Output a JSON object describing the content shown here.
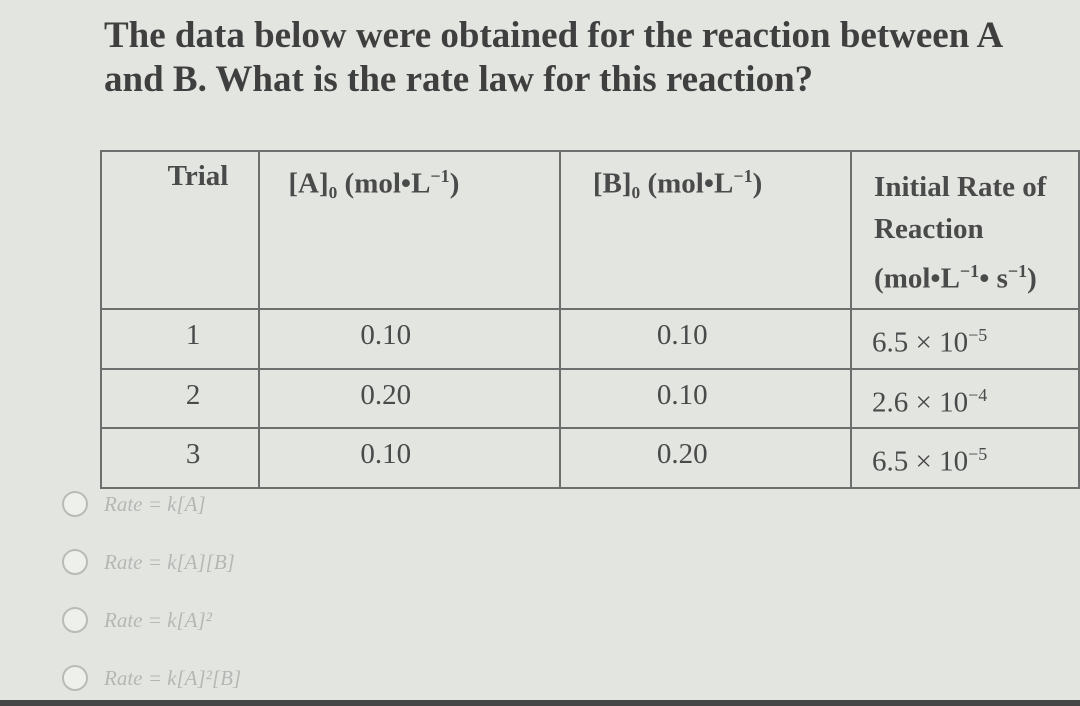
{
  "question": {
    "line1": "The data below were obtained for the reaction between A",
    "line2": "and B. What is the rate law for this reaction?"
  },
  "table": {
    "headers": {
      "trial": "Trial",
      "a": "[A]₀ (mol•L",
      "a_sup": "−1",
      "a_tail": ")",
      "b": "[B]₀ (mol•L",
      "b_sup": "−1",
      "b_tail": ")",
      "rate_line1": "Initial Rate of",
      "rate_line2": "Reaction",
      "rate_line3_a": "(mol•L",
      "rate_line3_sup1": "−1",
      "rate_line3_b": "• s",
      "rate_line3_sup2": "−1",
      "rate_line3_c": ")"
    },
    "rows": [
      {
        "trial": "1",
        "a": "0.10",
        "b": "0.10",
        "rate": "6.5 × 10",
        "rate_exp": "−5"
      },
      {
        "trial": "2",
        "a": "0.20",
        "b": "0.10",
        "rate": "2.6 × 10",
        "rate_exp": "−4"
      },
      {
        "trial": "3",
        "a": "0.10",
        "b": "0.20",
        "rate": "6.5 × 10",
        "rate_exp": "−5"
      }
    ]
  },
  "options": [
    {
      "label": "Rate = k[A]"
    },
    {
      "label": "Rate = k[A][B]"
    },
    {
      "label": "Rate = k[A]²"
    },
    {
      "label": "Rate = k[A]²[B]"
    }
  ]
}
